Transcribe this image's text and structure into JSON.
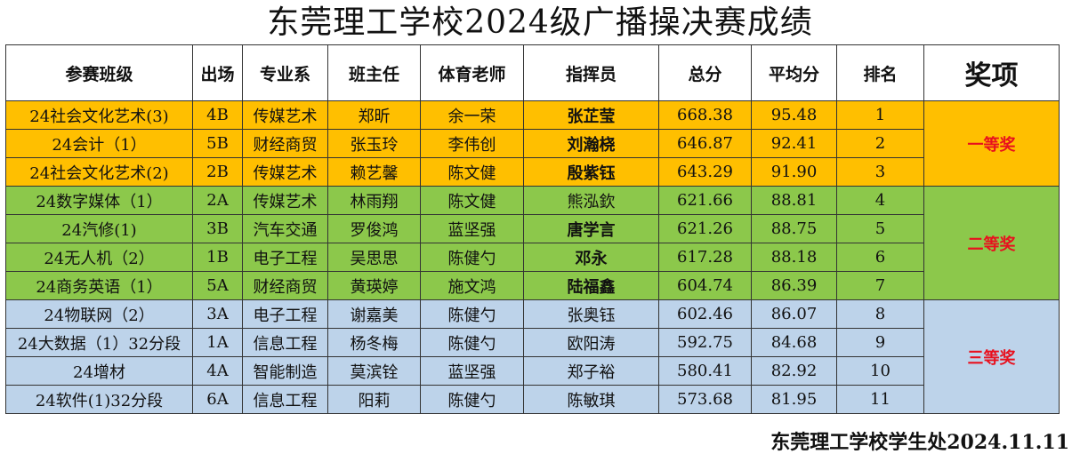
{
  "title": "东莞理工学校2024级广播操决赛成绩",
  "headers": {
    "class": "参赛班级",
    "order": "出场",
    "dept": "专业系",
    "teacher": "班主任",
    "pe_teacher": "体育老师",
    "conductor": "指挥员",
    "total": "总分",
    "average": "平均分",
    "rank": "排名",
    "award": "奖项"
  },
  "awards": {
    "first": "一等奖",
    "second": "二等奖",
    "third": "三等奖"
  },
  "colors": {
    "first_tier": "#ffbf00",
    "second_tier": "#8cc84b",
    "third_tier": "#bdd3ea",
    "award_text": "#e8101e"
  },
  "rows": [
    {
      "class": "24社会文化艺术(3)",
      "order": "4B",
      "dept": "传媒艺术",
      "teacher": "郑昕",
      "pe_teacher": "余一荣",
      "conductor": "张芷莹",
      "total": "668.38",
      "average": "95.48",
      "rank": "1"
    },
    {
      "class": "24会计（1）",
      "order": "5B",
      "dept": "财经商贸",
      "teacher": "张玉玲",
      "pe_teacher": "李伟创",
      "conductor": "刘瀚桡",
      "total": "646.87",
      "average": "92.41",
      "rank": "2"
    },
    {
      "class": "24社会文化艺术(2)",
      "order": "2B",
      "dept": "传媒艺术",
      "teacher": "赖艺馨",
      "pe_teacher": "陈文健",
      "conductor": "殷紫钰",
      "total": "643.29",
      "average": "91.90",
      "rank": "3"
    },
    {
      "class": "24数字媒体（1）",
      "order": "2A",
      "dept": "传媒艺术",
      "teacher": "林雨翔",
      "pe_teacher": "陈文健",
      "conductor": "熊泓欽",
      "total": "621.66",
      "average": "88.81",
      "rank": "4"
    },
    {
      "class": "24汽修(1)",
      "order": "3B",
      "dept": "汽车交通",
      "teacher": "罗俊鸿",
      "pe_teacher": "蓝坚强",
      "conductor": "唐学言",
      "total": "621.26",
      "average": "88.75",
      "rank": "5"
    },
    {
      "class": "24无人机（2）",
      "order": "1B",
      "dept": "电子工程",
      "teacher": "吴思思",
      "pe_teacher": "陈健勺",
      "conductor": "邓永",
      "total": "617.28",
      "average": "88.18",
      "rank": "6"
    },
    {
      "class": "24商务英语（1）",
      "order": "5A",
      "dept": "财经商贸",
      "teacher": "黄瑛婷",
      "pe_teacher": "施文鸿",
      "conductor": "陆福鑫",
      "total": "604.74",
      "average": "86.39",
      "rank": "7"
    },
    {
      "class": "24物联网（2）",
      "order": "3A",
      "dept": "电子工程",
      "teacher": "谢嘉美",
      "pe_teacher": "陈健勺",
      "conductor": "张奥钰",
      "total": "602.46",
      "average": "86.07",
      "rank": "8"
    },
    {
      "class": "24大数据（1）32分段",
      "order": "1A",
      "dept": "信息工程",
      "teacher": "杨冬梅",
      "pe_teacher": "陈健勺",
      "conductor": "欧阳涛",
      "total": "592.75",
      "average": "84.68",
      "rank": "9"
    },
    {
      "class": "24增材",
      "order": "4A",
      "dept": "智能制造",
      "teacher": "莫滨铨",
      "pe_teacher": "蓝坚强",
      "conductor": "郑子裕",
      "total": "580.41",
      "average": "82.92",
      "rank": "10"
    },
    {
      "class": "24软件(1)32分段",
      "order": "6A",
      "dept": "信息工程",
      "teacher": "阳莉",
      "pe_teacher": "陈健勺",
      "conductor": "陈敏琪",
      "total": "573.68",
      "average": "81.95",
      "rank": "11"
    }
  ],
  "footer": "东莞理工学校学生处2024.11.11"
}
